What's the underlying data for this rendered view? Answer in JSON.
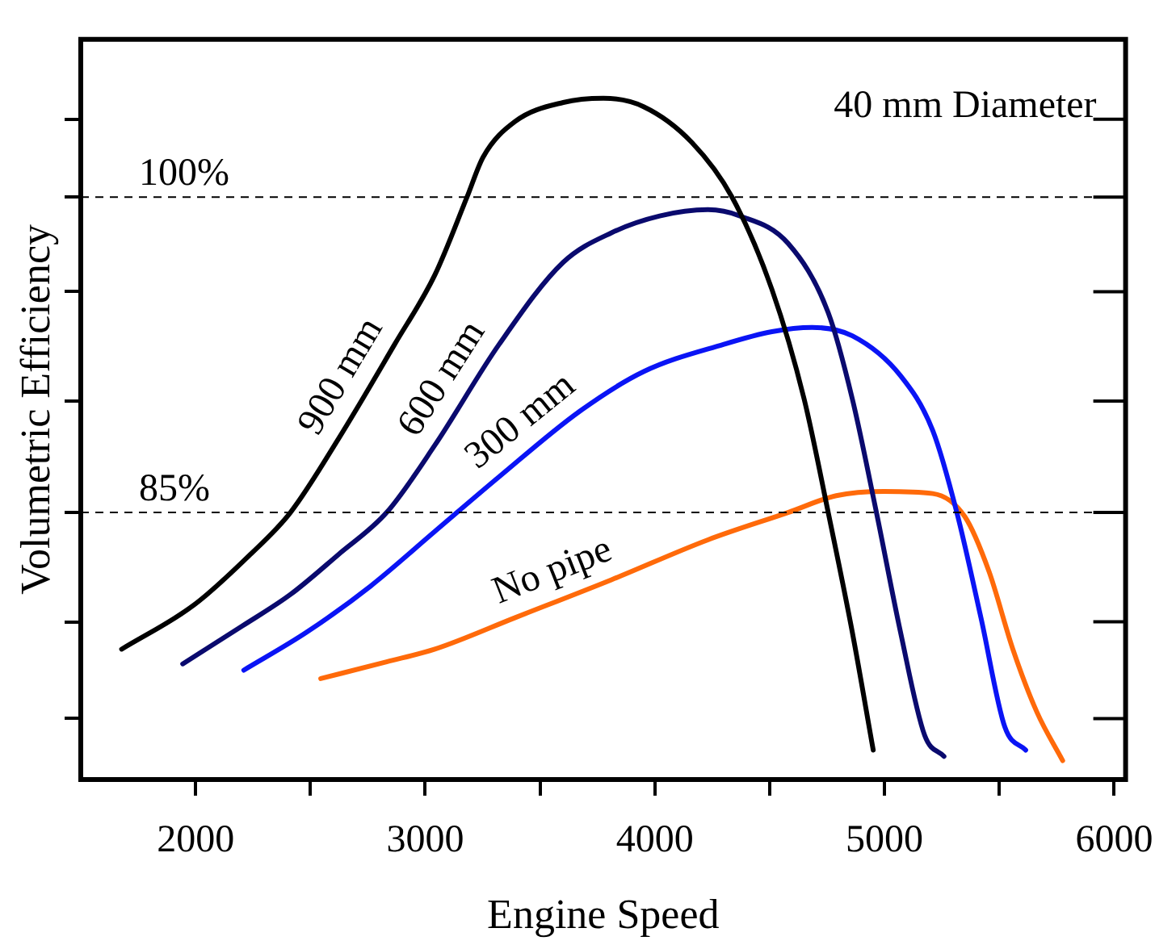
{
  "chart_data": {
    "type": "line",
    "xlabel": "Engine Speed",
    "ylabel": "Volumetric Efficiency",
    "annotations": [
      "40 mm Diameter"
    ],
    "xlim": [
      1500,
      6050
    ],
    "xticks": [
      2000,
      {
        "value": 2500,
        "label": null
      },
      3000,
      {
        "value": 3500,
        "label": null
      },
      4000,
      {
        "value": 4500,
        "label": null
      },
      5000,
      {
        "value": 5500,
        "label": null
      },
      6000
    ],
    "ylim": [
      72.3,
      107.5
    ],
    "yticks": [
      {
        "value": 75.2,
        "label": null
      },
      {
        "value": 79.8,
        "label": null
      },
      {
        "value": 85,
        "label": null
      },
      {
        "value": 90.3,
        "label": null
      },
      {
        "value": 95.5,
        "label": null
      },
      {
        "value": 100,
        "label": null
      },
      {
        "value": 103.7,
        "label": null
      }
    ],
    "ref_lines": [
      {
        "axis": "y",
        "value": 100,
        "label": "100%",
        "color": "#000000",
        "line_style": "dashed"
      },
      {
        "axis": "y",
        "value": 85,
        "label": "85%",
        "color": "#000000",
        "line_style": "dashed"
      }
    ],
    "grid": false,
    "legend": false,
    "marker": "none",
    "line_style": "solid",
    "series": [
      {
        "name": "900 mm",
        "color": "#000000",
        "x": [
          1678,
          1993,
          2238,
          2413,
          2622,
          2867,
          3042,
          3182,
          3252,
          3392,
          3601,
          3776,
          3951,
          4161,
          4336,
          4510,
          4650,
          4755,
          4860,
          4951
        ],
        "values": [
          78.5,
          80.6,
          83.0,
          85.0,
          88.5,
          93.0,
          96.3,
          100,
          101.9,
          103.6,
          104.5,
          104.7,
          104.3,
          102.6,
          100,
          95.6,
          90.4,
          85,
          79.3,
          73.7
        ]
      },
      {
        "name": "600 mm",
        "color": "#0a0a6e",
        "x": [
          1944,
          2203,
          2413,
          2622,
          2832,
          3042,
          3322,
          3601,
          3811,
          4021,
          4231,
          4371,
          4580,
          4755,
          4860,
          4965,
          5070,
          5175,
          5259
        ],
        "values": [
          77.8,
          79.6,
          81.1,
          83.0,
          85.0,
          88.2,
          93.0,
          96.9,
          98.3,
          99.1,
          99.4,
          99.1,
          97.8,
          94.5,
          90.4,
          85,
          79.3,
          74.4,
          73.4
        ]
      },
      {
        "name": "300 mm",
        "color": "#0a14f5",
        "x": [
          2210,
          2483,
          2762,
          3042,
          3322,
          3671,
          3951,
          4301,
          4510,
          4685,
          4860,
          5070,
          5210,
          5315,
          5420,
          5524,
          5615
        ],
        "values": [
          77.5,
          79.3,
          81.5,
          84.1,
          86.7,
          89.8,
          91.7,
          93.0,
          93.6,
          93.8,
          93.4,
          91.5,
          88.9,
          85,
          80.0,
          74.8,
          73.7
        ]
      },
      {
        "name": "No pipe",
        "color": "#ff6a0a",
        "x": [
          2545,
          2832,
          3042,
          3392,
          3811,
          4231,
          4580,
          4790,
          4999,
          5210,
          5350,
          5455,
          5559,
          5664,
          5776
        ],
        "values": [
          77.1,
          77.9,
          78.5,
          80.0,
          81.8,
          83.7,
          85.0,
          85.8,
          86.0,
          85.9,
          84.8,
          82.2,
          78.5,
          75.5,
          73.2
        ]
      }
    ]
  }
}
